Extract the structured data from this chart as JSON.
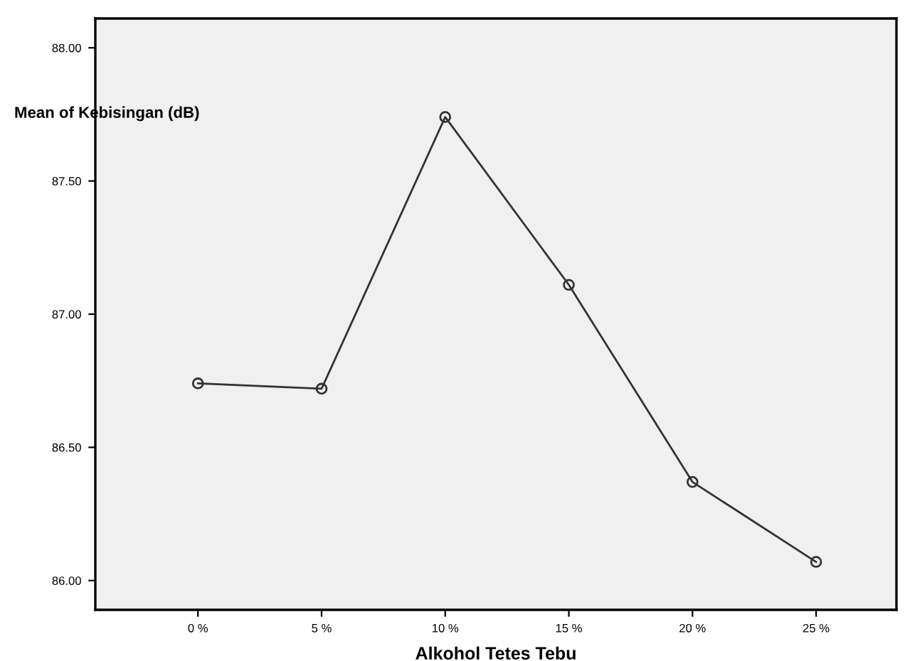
{
  "chart_data": {
    "type": "line",
    "xlabel": "Alkohol Tetes Tebu",
    "ylabel": "Mean of Kebisingan (dB)",
    "categories": [
      "0 %",
      "5 %",
      "10 %",
      "15 %",
      "20 %",
      "25 %"
    ],
    "series": [
      {
        "color": "#333333",
        "values": [
          86.74,
          86.72,
          87.74,
          87.11,
          86.37,
          86.07
        ]
      }
    ],
    "ylim": [
      85.89,
      88.11
    ],
    "yticks": [
      {
        "value": 86,
        "label": "86.00"
      },
      {
        "value": 86.5,
        "label": "86.50"
      },
      {
        "value": 87,
        "label": "87.00"
      },
      {
        "value": 87.5,
        "label": "87.50"
      },
      {
        "value": 88,
        "label": "88.00"
      }
    ],
    "marker": "circle",
    "line_style": "solid",
    "grid": false,
    "legend": false
  }
}
